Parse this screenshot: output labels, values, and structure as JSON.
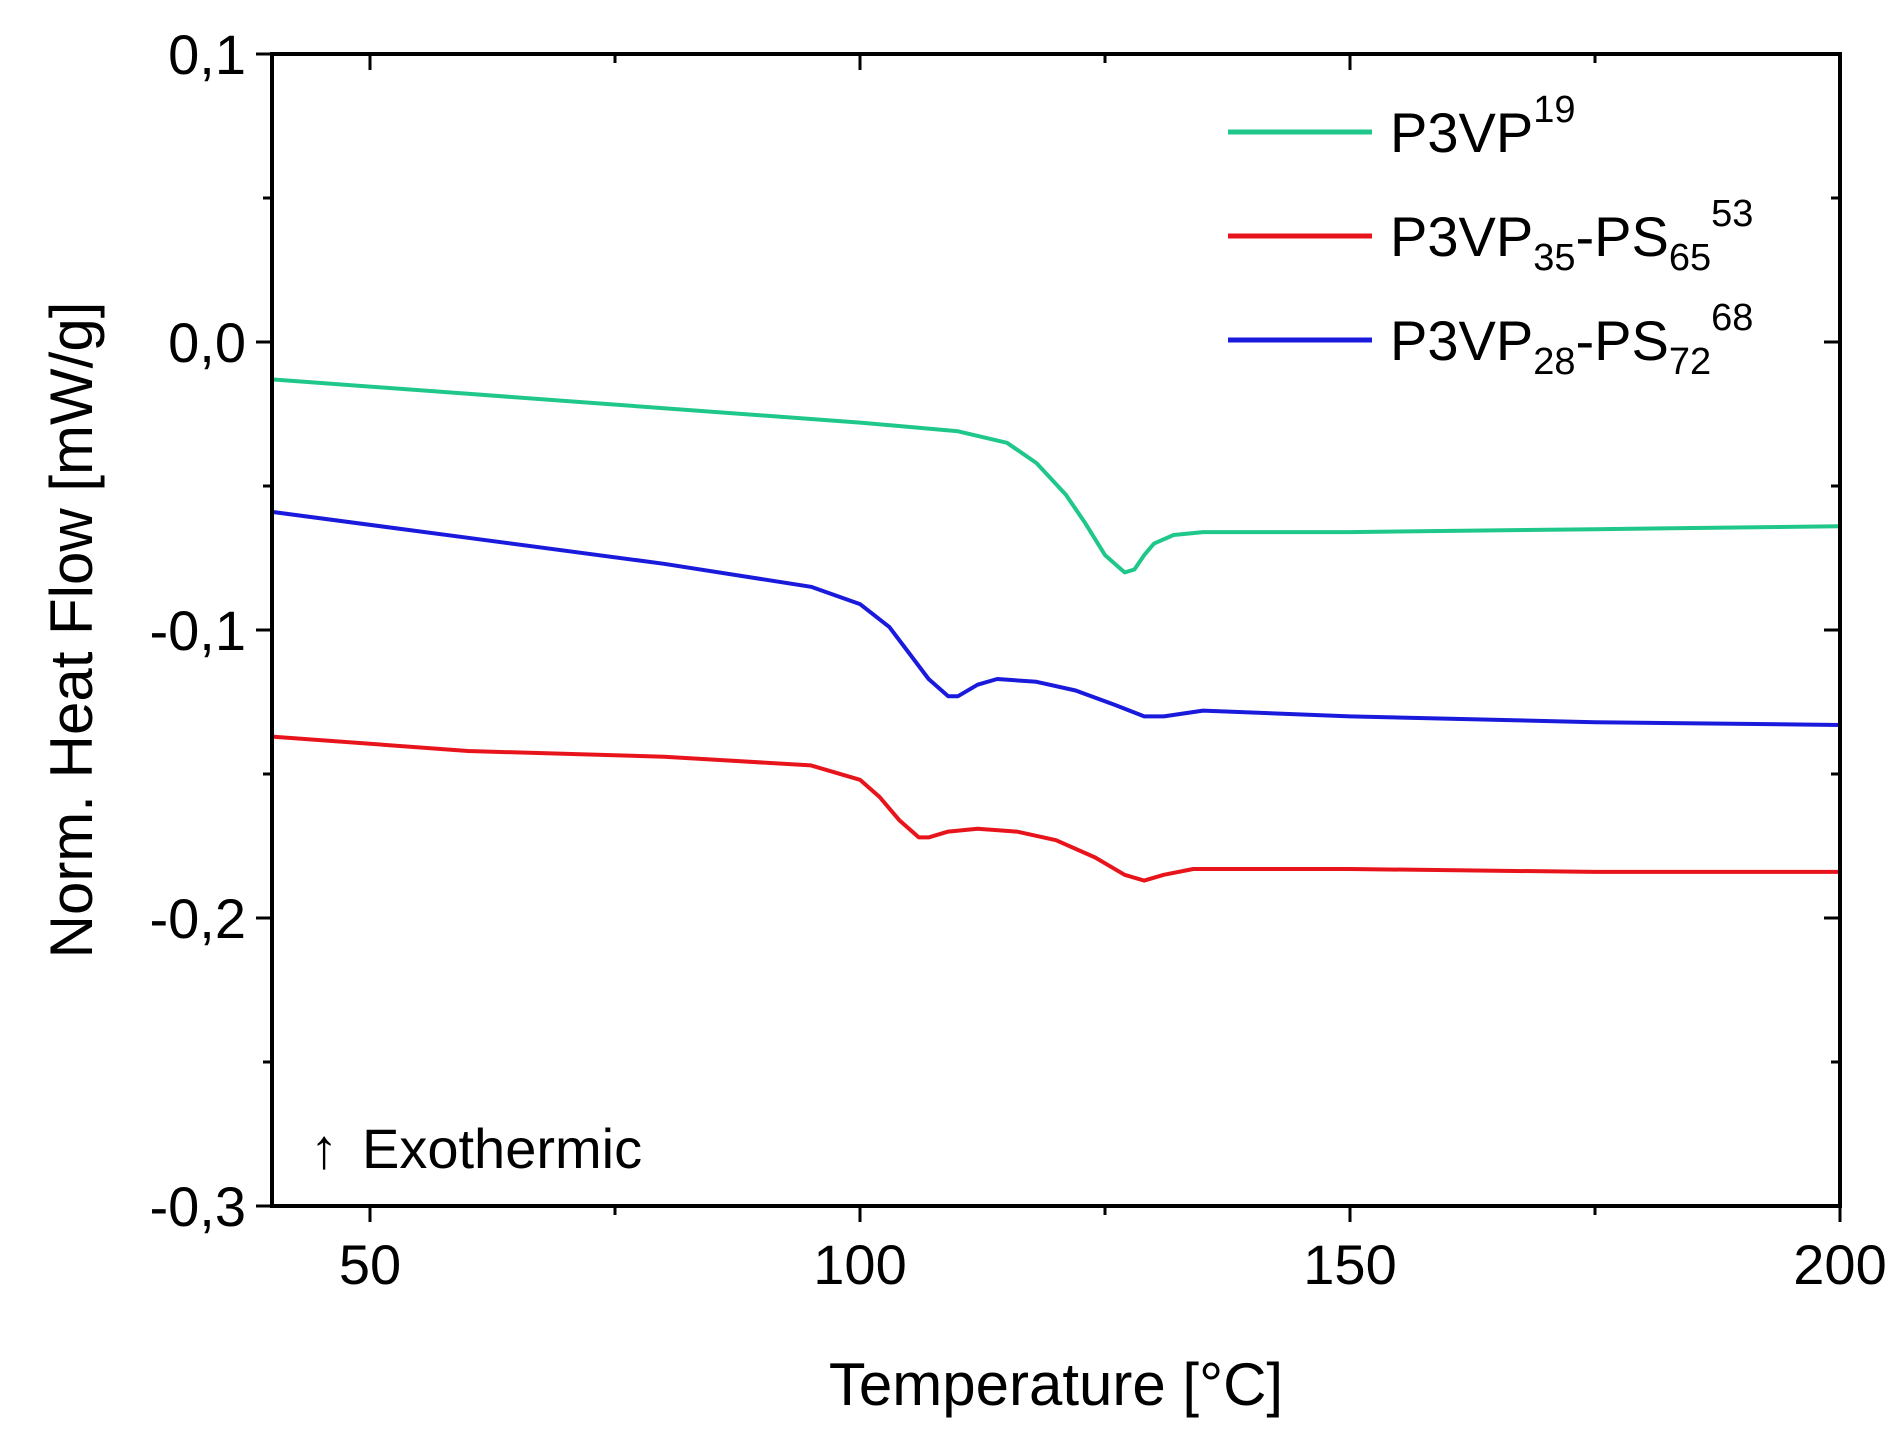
{
  "chart_data": {
    "type": "line",
    "xlabel": "Temperature [°C]",
    "ylabel": "Norm. Heat Flow [mW/g]",
    "xlim": [
      40,
      200
    ],
    "ylim": [
      -0.3,
      0.1
    ],
    "x_ticks": [
      50,
      100,
      150,
      200
    ],
    "x_tick_labels": [
      "50",
      "100",
      "150",
      "200"
    ],
    "y_ticks": [
      0.1,
      0.0,
      -0.1,
      -0.2,
      -0.3
    ],
    "y_tick_labels": [
      "0,1",
      "0,0",
      "-0,1",
      "-0,2",
      "-0,3"
    ],
    "grid": false,
    "legend_position": "top-right",
    "annotation": {
      "arrow": "↑",
      "text": "Exothermic"
    },
    "series": [
      {
        "name": "P3VP",
        "name_parts": {
          "base": "P3VP",
          "sub1": "",
          "mid": "",
          "sub2": "",
          "sup": "19"
        },
        "color": "#1fc78a",
        "points": [
          [
            40,
            -0.013
          ],
          [
            60,
            -0.018
          ],
          [
            80,
            -0.023
          ],
          [
            100,
            -0.028
          ],
          [
            110,
            -0.031
          ],
          [
            115,
            -0.035
          ],
          [
            118,
            -0.042
          ],
          [
            121,
            -0.053
          ],
          [
            123,
            -0.063
          ],
          [
            125,
            -0.074
          ],
          [
            127,
            -0.08
          ],
          [
            128,
            -0.079
          ],
          [
            129,
            -0.074
          ],
          [
            130,
            -0.07
          ],
          [
            132,
            -0.067
          ],
          [
            135,
            -0.066
          ],
          [
            150,
            -0.066
          ],
          [
            175,
            -0.065
          ],
          [
            200,
            -0.064
          ]
        ]
      },
      {
        "name": "P3VP-PS",
        "name_parts": {
          "base": "P3VP",
          "sub1": "35",
          "mid": "-PS",
          "sub2": "65",
          "sup": "53"
        },
        "color": "#e8141c",
        "points": [
          [
            40,
            -0.137
          ],
          [
            60,
            -0.142
          ],
          [
            80,
            -0.144
          ],
          [
            95,
            -0.147
          ],
          [
            100,
            -0.152
          ],
          [
            102,
            -0.158
          ],
          [
            104,
            -0.166
          ],
          [
            106,
            -0.172
          ],
          [
            107,
            -0.172
          ],
          [
            109,
            -0.17
          ],
          [
            112,
            -0.169
          ],
          [
            116,
            -0.17
          ],
          [
            120,
            -0.173
          ],
          [
            124,
            -0.179
          ],
          [
            127,
            -0.185
          ],
          [
            129,
            -0.187
          ],
          [
            131,
            -0.185
          ],
          [
            134,
            -0.183
          ],
          [
            150,
            -0.183
          ],
          [
            175,
            -0.184
          ],
          [
            200,
            -0.184
          ]
        ]
      },
      {
        "name": "P3VP-PS",
        "name_parts": {
          "base": "P3VP",
          "sub1": "28",
          "mid": "-PS",
          "sub2": "72",
          "sup": "68"
        },
        "color": "#1a1adc",
        "points": [
          [
            40,
            -0.059
          ],
          [
            60,
            -0.068
          ],
          [
            80,
            -0.077
          ],
          [
            95,
            -0.085
          ],
          [
            100,
            -0.091
          ],
          [
            103,
            -0.099
          ],
          [
            105,
            -0.108
          ],
          [
            107,
            -0.117
          ],
          [
            109,
            -0.123
          ],
          [
            110,
            -0.123
          ],
          [
            112,
            -0.119
          ],
          [
            114,
            -0.117
          ],
          [
            118,
            -0.118
          ],
          [
            122,
            -0.121
          ],
          [
            126,
            -0.126
          ],
          [
            129,
            -0.13
          ],
          [
            131,
            -0.13
          ],
          [
            135,
            -0.128
          ],
          [
            150,
            -0.13
          ],
          [
            175,
            -0.132
          ],
          [
            200,
            -0.133
          ]
        ]
      }
    ]
  }
}
